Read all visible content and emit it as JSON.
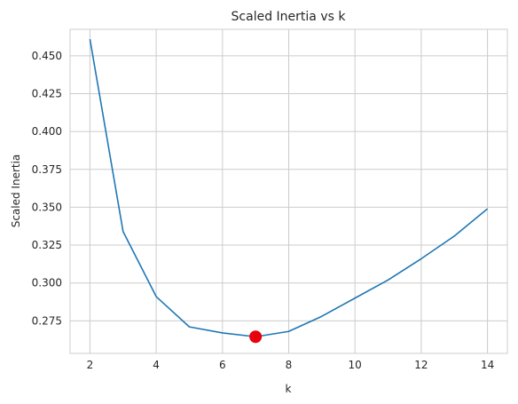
{
  "chart_data": {
    "type": "line",
    "title": "Scaled Inertia vs k",
    "xlabel": "k",
    "ylabel": "Scaled Inertia",
    "xlim": [
      1.4,
      14.6
    ],
    "ylim": [
      0.2535,
      0.4675
    ],
    "xticks": [
      2,
      4,
      6,
      8,
      10,
      12,
      14
    ],
    "yticks": [
      0.275,
      0.3,
      0.325,
      0.35,
      0.375,
      0.4,
      0.425,
      0.45
    ],
    "ytick_labels": [
      "0.275",
      "0.300",
      "0.325",
      "0.350",
      "0.375",
      "0.400",
      "0.425",
      "0.450"
    ],
    "grid": true,
    "series": [
      {
        "color": "#1f77b4",
        "x": [
          2,
          3,
          4,
          5,
          6,
          7,
          8,
          9,
          10,
          11,
          12,
          13,
          14
        ],
        "y": [
          0.461,
          0.334,
          0.291,
          0.271,
          0.267,
          0.2645,
          0.268,
          0.278,
          0.29,
          0.302,
          0.316,
          0.331,
          0.349
        ]
      }
    ],
    "highlight": {
      "x": 7,
      "y": 0.2645,
      "color": "#e8000b"
    }
  }
}
